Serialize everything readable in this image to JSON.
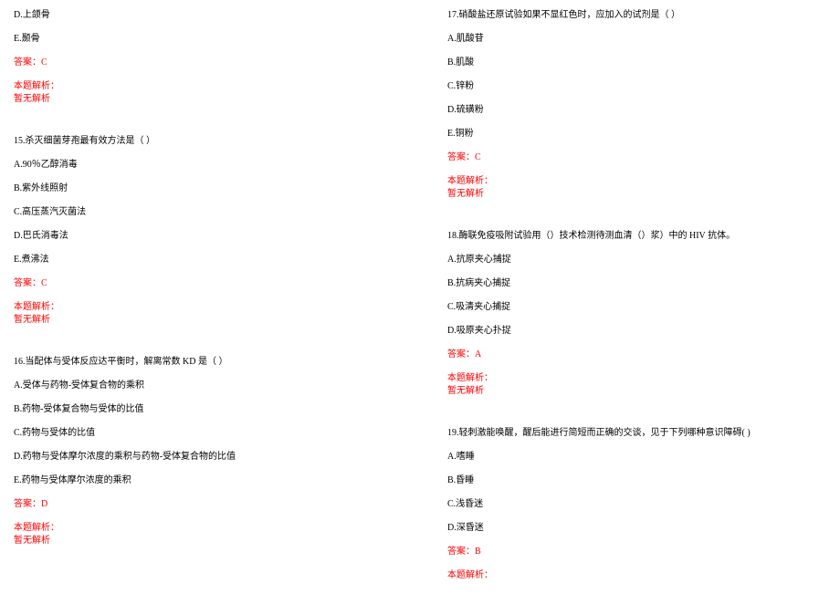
{
  "left": {
    "q14_d": "D.上颌骨",
    "q14_e": "E.颞骨",
    "q14_answer": "答案：C",
    "q14_analysis_label": "本题解析：",
    "q14_analysis_text": "暂无解析",
    "q15_stem": "15.杀灭细菌芽孢最有效方法是（   ）",
    "q15_a": "A.90％乙醇消毒",
    "q15_b": "B.紫外线照射",
    "q15_c": "C.高压蒸汽灭菌法",
    "q15_d": "D.巴氏消毒法",
    "q15_e": "E.煮沸法",
    "q15_answer": "答案：C",
    "q15_analysis_label": "本题解析：",
    "q15_analysis_text": "暂无解析",
    "q16_stem": "16.当配体与受体反应达平衡时，解离常数 KD 是（  ）",
    "q16_a": "A.受体与药物-受体复合物的乘积",
    "q16_b": "B.药物-受体复合物与受体的比值",
    "q16_c": "C.药物与受体的比值",
    "q16_d": "D.药物与受体摩尔浓度的乘积与药物-受体复合物的比值",
    "q16_e": "E.药物与受体摩尔浓度的乘积",
    "q16_answer": "答案：D",
    "q16_analysis_label": "本题解析：",
    "q16_analysis_text": "暂无解析"
  },
  "right": {
    "q17_stem": "17.硝酸盐还原试验如果不显红色时，应加入的试剂是（  ）",
    "q17_a": "A.肌酸苷",
    "q17_b": "B.肌酸",
    "q17_c": "C.锌粉",
    "q17_d": "D.硫磺粉",
    "q17_e": "E.铜粉",
    "q17_answer": "答案：C",
    "q17_analysis_label": "本题解析：",
    "q17_analysis_text": "暂无解析",
    "q18_stem": "18.酶联免疫吸附试验用（）技术检测待测血清（）浆）中的 HIV 抗体。",
    "q18_a": "A.抗原夹心捕捉",
    "q18_b": "B.抗病夹心捕捉",
    "q18_c": "C.吸清夹心捕捉",
    "q18_d": "D.吸原夹心扑捉",
    "q18_answer": "答案：A",
    "q18_analysis_label": "本题解析：",
    "q18_analysis_text": "暂无解析",
    "q19_stem": "19.轻刺激能唤醒，醒后能进行简短而正确的交谈，见于下列哪种意识障碍(  )",
    "q19_a": "A.嗜睡",
    "q19_b": "B.昏睡",
    "q19_c": "C.浅昏迷",
    "q19_d": "D.深昏迷",
    "q19_answer": "答案：B",
    "q19_analysis_label": "本题解析："
  }
}
